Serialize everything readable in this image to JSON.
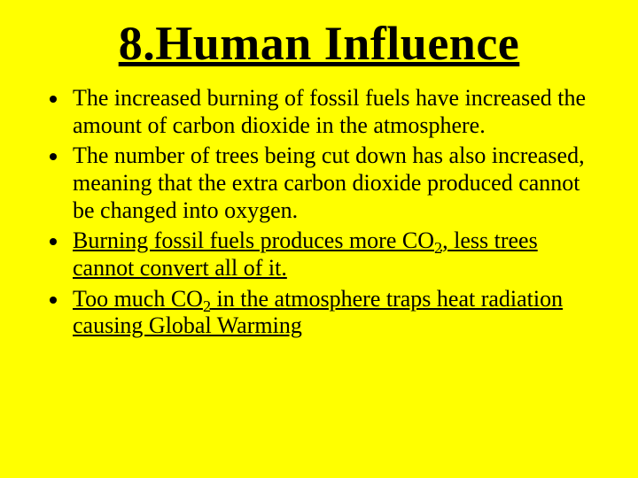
{
  "slide": {
    "background_color": "#ffff00",
    "text_color": "#000000",
    "font_family": "Times New Roman",
    "title": {
      "text": "8.Human Influence",
      "fontsize": 54,
      "underline": true,
      "align": "center",
      "weight": "bold"
    },
    "bullets": {
      "fontsize": 26,
      "line_height": 1.18,
      "marker": "disc",
      "items": [
        {
          "underline": false,
          "leading_space": true,
          "text": " The increased burning of fossil fuels have increased the amount of carbon dioxide in the atmosphere."
        },
        {
          "underline": false,
          "text": "The number of trees being cut down has also increased, meaning that the extra carbon dioxide produced cannot be changed into oxygen."
        },
        {
          "underline": true,
          "text_pre": "Burning fossil fuels produces more CO",
          "sub": "2",
          "text_post": ", less trees cannot convert all of it."
        },
        {
          "underline": true,
          "text_pre": "Too much CO",
          "sub": "2",
          "text_post": " in the atmosphere traps heat radiation causing Global Warming"
        }
      ]
    }
  }
}
